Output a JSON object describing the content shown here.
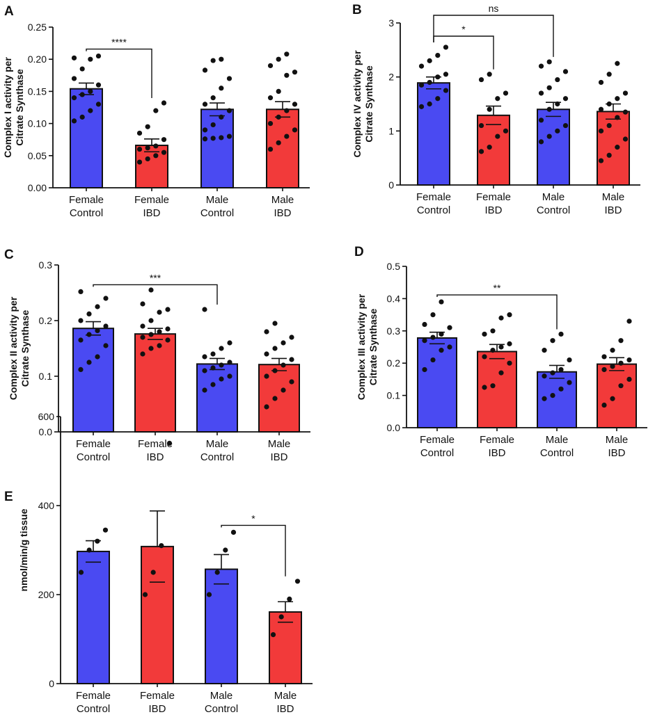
{
  "colors": {
    "control": "#4a4af2",
    "ibd": "#f23a3a",
    "axis": "#111111"
  },
  "chart_data": [
    {
      "panel": "A",
      "type": "bar",
      "categories": [
        [
          "Female",
          "Control"
        ],
        [
          "Female",
          "IBD"
        ],
        [
          "Male",
          "Control"
        ],
        [
          "Male",
          "IBD"
        ]
      ],
      "values": [
        0.154,
        0.066,
        0.122,
        0.122
      ],
      "errors": [
        0.009,
        0.01,
        0.01,
        0.012
      ],
      "ylabel": [
        "Complex I activity per",
        "Citrate Synthase"
      ],
      "ylim": [
        0,
        0.25
      ],
      "yticks": [
        0,
        0.05,
        0.1,
        0.15,
        0.2,
        0.25
      ],
      "ytick_labels": [
        "0.00",
        "0.05",
        "0.10",
        "0.15",
        "0.20",
        "0.25"
      ],
      "points": [
        [
          0.104,
          0.11,
          0.12,
          0.13,
          0.14,
          0.145,
          0.15,
          0.16,
          0.17,
          0.185,
          0.2,
          0.205,
          0.202
        ],
        [
          0.04,
          0.045,
          0.05,
          0.055,
          0.06,
          0.062,
          0.065,
          0.075,
          0.085,
          0.095,
          0.12,
          0.132
        ],
        [
          0.076,
          0.077,
          0.078,
          0.08,
          0.09,
          0.098,
          0.11,
          0.12,
          0.13,
          0.14,
          0.155,
          0.17,
          0.183,
          0.198,
          0.2
        ],
        [
          0.06,
          0.07,
          0.08,
          0.09,
          0.1,
          0.11,
          0.12,
          0.13,
          0.14,
          0.15,
          0.175,
          0.18,
          0.19,
          0.2,
          0.208
        ]
      ],
      "significance": [
        {
          "from": 0,
          "to": 1,
          "label": "****"
        }
      ]
    },
    {
      "panel": "B",
      "type": "bar",
      "categories": [
        [
          "Female",
          "Control"
        ],
        [
          "Female",
          "IBD"
        ],
        [
          "Male",
          "Control"
        ],
        [
          "Male",
          "IBD"
        ]
      ],
      "values": [
        1.89,
        1.29,
        1.4,
        1.36
      ],
      "errors": [
        0.11,
        0.17,
        0.13,
        0.14
      ],
      "ylabel": [
        "Complex  IV activity per",
        "Citrate Synthase"
      ],
      "ylim": [
        0,
        3
      ],
      "yticks": [
        0,
        1,
        2,
        3
      ],
      "ytick_labels": [
        "0",
        "1",
        "2",
        "3"
      ],
      "points": [
        [
          1.45,
          1.5,
          1.6,
          1.75,
          1.85,
          1.9,
          2.0,
          2.05,
          2.2,
          2.3,
          2.4,
          2.55
        ],
        [
          0.62,
          0.7,
          0.9,
          1.0,
          1.1,
          1.4,
          1.6,
          1.7,
          1.95,
          2.05
        ],
        [
          0.8,
          0.9,
          1.0,
          1.1,
          1.2,
          1.4,
          1.5,
          1.6,
          1.7,
          1.8,
          1.95,
          2.1,
          2.2,
          2.28
        ],
        [
          0.45,
          0.55,
          0.7,
          0.85,
          1.0,
          1.1,
          1.25,
          1.35,
          1.4,
          1.5,
          1.6,
          1.7,
          1.9,
          2.05,
          2.25
        ]
      ],
      "significance": [
        {
          "from": 0,
          "to": 1,
          "label": "*"
        },
        {
          "from": 0,
          "to": 2,
          "label": "ns"
        }
      ]
    },
    {
      "panel": "C",
      "type": "bar",
      "categories": [
        [
          "Female",
          "Control"
        ],
        [
          "Female",
          "IBD"
        ],
        [
          "Male",
          "Control"
        ],
        [
          "Male",
          "IBD"
        ]
      ],
      "values": [
        0.186,
        0.176,
        0.122,
        0.121
      ],
      "errors": [
        0.012,
        0.01,
        0.01,
        0.011
      ],
      "ylabel": [
        "Complex  II activity per",
        "Citrate Synthase"
      ],
      "ylim": [
        0,
        0.3
      ],
      "yticks": [
        0,
        0.1,
        0.2,
        0.3
      ],
      "ytick_labels": [
        "0.0",
        "0.1",
        "0.2",
        "0.3"
      ],
      "points": [
        [
          0.112,
          0.125,
          0.135,
          0.155,
          0.165,
          0.175,
          0.182,
          0.19,
          0.2,
          0.212,
          0.225,
          0.24,
          0.252
        ],
        [
          0.14,
          0.15,
          0.155,
          0.165,
          0.17,
          0.175,
          0.18,
          0.185,
          0.19,
          0.2,
          0.215,
          0.22,
          0.23,
          0.255
        ],
        [
          0.075,
          0.085,
          0.095,
          0.1,
          0.11,
          0.115,
          0.12,
          0.125,
          0.135,
          0.14,
          0.15,
          0.16,
          0.22
        ],
        [
          0.045,
          0.06,
          0.075,
          0.09,
          0.1,
          0.11,
          0.12,
          0.13,
          0.14,
          0.15,
          0.16,
          0.17,
          0.18,
          0.195
        ]
      ],
      "significance": [
        {
          "from": 0,
          "to": 2,
          "label": "***"
        }
      ]
    },
    {
      "panel": "D",
      "type": "bar",
      "categories": [
        [
          "Female",
          "Control"
        ],
        [
          "Female",
          "IBD"
        ],
        [
          "Male",
          "Control"
        ],
        [
          "Male",
          "IBD"
        ]
      ],
      "values": [
        0.278,
        0.236,
        0.173,
        0.197
      ],
      "errors": [
        0.018,
        0.022,
        0.02,
        0.02
      ],
      "ylabel": [
        "Complex  III activity per",
        "Citrate Synthase"
      ],
      "ylim": [
        0,
        0.5
      ],
      "yticks": [
        0,
        0.1,
        0.2,
        0.3,
        0.4,
        0.5
      ],
      "ytick_labels": [
        "0.0",
        "0.1",
        "0.2",
        "0.3",
        "0.4",
        "0.5"
      ],
      "points": [
        [
          0.18,
          0.21,
          0.24,
          0.25,
          0.27,
          0.28,
          0.29,
          0.31,
          0.32,
          0.35,
          0.39
        ],
        [
          0.125,
          0.13,
          0.17,
          0.2,
          0.22,
          0.24,
          0.25,
          0.26,
          0.29,
          0.3,
          0.34,
          0.35
        ],
        [
          0.09,
          0.1,
          0.12,
          0.14,
          0.16,
          0.17,
          0.18,
          0.21,
          0.24,
          0.27,
          0.29
        ],
        [
          0.07,
          0.09,
          0.13,
          0.15,
          0.18,
          0.19,
          0.2,
          0.21,
          0.22,
          0.24,
          0.27,
          0.33
        ]
      ],
      "significance": [
        {
          "from": 0,
          "to": 2,
          "label": "**"
        }
      ]
    },
    {
      "panel": "E",
      "type": "bar",
      "categories": [
        [
          "Female",
          "Control"
        ],
        [
          "Female",
          "IBD"
        ],
        [
          "Male",
          "Control"
        ],
        [
          "Male",
          "IBD"
        ]
      ],
      "values": [
        297,
        308,
        257,
        161
      ],
      "errors": [
        24,
        80,
        33,
        23
      ],
      "ylabel": [
        "nmol/min/g tissue"
      ],
      "ylim": [
        0,
        600
      ],
      "yticks": [
        0,
        200,
        400,
        600
      ],
      "ytick_labels": [
        "0",
        "200",
        "400",
        "600"
      ],
      "points": [
        [
          250,
          300,
          320,
          345
        ],
        [
          200,
          250,
          310,
          540
        ],
        [
          200,
          250,
          300,
          340
        ],
        [
          110,
          150,
          190,
          230
        ]
      ],
      "significance": [
        {
          "from": 2,
          "to": 3,
          "label": "*"
        }
      ]
    }
  ]
}
